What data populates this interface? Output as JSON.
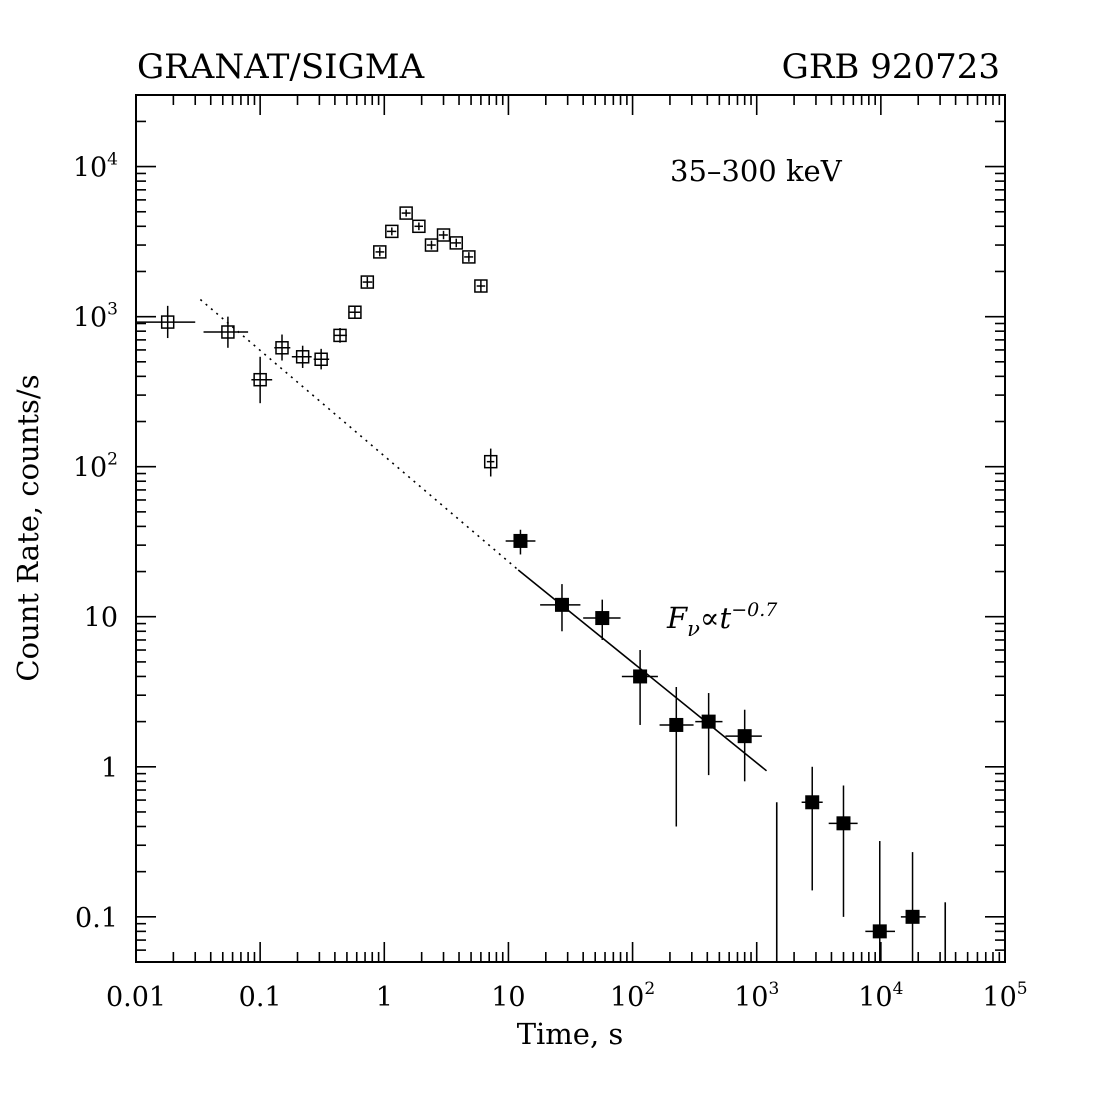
{
  "chart_data": {
    "type": "scatter",
    "title_left": "GRANAT/SIGMA",
    "title_right": "GRB 920723",
    "band_label": "35–300 keV",
    "xlabel": "Time, s",
    "ylabel": "Count Rate, counts/s",
    "xscale": "log",
    "yscale": "log",
    "xlim": [
      0.01,
      100000
    ],
    "ylim": [
      0.05,
      30000
    ],
    "x_tick_labels": [
      {
        "value": 0.01,
        "base": "0.01",
        "exp": ""
      },
      {
        "value": 0.1,
        "base": "0.1",
        "exp": ""
      },
      {
        "value": 1,
        "base": "1",
        "exp": ""
      },
      {
        "value": 10,
        "base": "10",
        "exp": ""
      },
      {
        "value": 100,
        "base": "10",
        "exp": "2"
      },
      {
        "value": 1000,
        "base": "10",
        "exp": "3"
      },
      {
        "value": 10000,
        "base": "10",
        "exp": "4"
      },
      {
        "value": 100000,
        "base": "10",
        "exp": "5"
      }
    ],
    "y_tick_labels": [
      {
        "value": 0.1,
        "base": "0.1",
        "exp": ""
      },
      {
        "value": 1,
        "base": "1",
        "exp": ""
      },
      {
        "value": 10,
        "base": "10",
        "exp": ""
      },
      {
        "value": 100,
        "base": "10",
        "exp": "2"
      },
      {
        "value": 1000,
        "base": "10",
        "exp": "3"
      },
      {
        "value": 10000,
        "base": "10",
        "exp": "4"
      }
    ],
    "series": [
      {
        "marker": "open-square",
        "points": [
          {
            "x": 0.018,
            "y": 920,
            "x_lo": 0.01,
            "x_hi": 0.03,
            "y_lo": 720,
            "y_hi": 1180
          },
          {
            "x": 0.055,
            "y": 790,
            "x_lo": 0.035,
            "x_hi": 0.08,
            "y_lo": 620,
            "y_hi": 1000
          },
          {
            "x": 0.1,
            "y": 380,
            "x_lo": 0.085,
            "x_hi": 0.125,
            "y_lo": 265,
            "y_hi": 540
          },
          {
            "x": 0.15,
            "y": 620,
            "x_lo": 0.13,
            "x_hi": 0.175,
            "y_lo": 510,
            "y_hi": 760
          },
          {
            "x": 0.22,
            "y": 540,
            "x_lo": 0.18,
            "x_hi": 0.26,
            "y_lo": 455,
            "y_hi": 640
          },
          {
            "x": 0.31,
            "y": 520,
            "x_lo": 0.27,
            "x_hi": 0.36,
            "y_lo": 445,
            "y_hi": 610
          },
          {
            "x": 0.44,
            "y": 750,
            "x_lo": 0.39,
            "x_hi": 0.5,
            "y_lo": 670,
            "y_hi": 840
          },
          {
            "x": 0.58,
            "y": 1070,
            "x_lo": 0.52,
            "x_hi": 0.64,
            "y_lo": 970,
            "y_hi": 1180
          },
          {
            "x": 0.73,
            "y": 1700,
            "x_lo": 0.67,
            "x_hi": 0.8,
            "y_lo": 1570,
            "y_hi": 1840
          },
          {
            "x": 0.92,
            "y": 2700,
            "x_lo": 0.85,
            "x_hi": 1.0,
            "y_lo": 2520,
            "y_hi": 2900
          },
          {
            "x": 1.15,
            "y": 3700,
            "x_lo": 1.05,
            "x_hi": 1.25,
            "y_lo": 3480,
            "y_hi": 3930
          },
          {
            "x": 1.5,
            "y": 4900,
            "x_lo": 1.38,
            "x_hi": 1.63,
            "y_lo": 4640,
            "y_hi": 5170
          },
          {
            "x": 1.9,
            "y": 4000,
            "x_lo": 1.75,
            "x_hi": 2.05,
            "y_lo": 3770,
            "y_hi": 4240
          },
          {
            "x": 2.4,
            "y": 3000,
            "x_lo": 2.2,
            "x_hi": 2.6,
            "y_lo": 2800,
            "y_hi": 3210
          },
          {
            "x": 3.0,
            "y": 3500,
            "x_lo": 2.75,
            "x_hi": 3.25,
            "y_lo": 3280,
            "y_hi": 3730
          },
          {
            "x": 3.8,
            "y": 3100,
            "x_lo": 3.45,
            "x_hi": 4.15,
            "y_lo": 2900,
            "y_hi": 3310
          },
          {
            "x": 4.8,
            "y": 2500,
            "x_lo": 4.4,
            "x_hi": 5.2,
            "y_lo": 2320,
            "y_hi": 2690
          },
          {
            "x": 6.0,
            "y": 1600,
            "x_lo": 5.55,
            "x_hi": 6.5,
            "y_lo": 1470,
            "y_hi": 1740
          },
          {
            "x": 7.2,
            "y": 108,
            "x_lo": 6.7,
            "x_hi": 7.7,
            "y_lo": 86,
            "y_hi": 132
          }
        ]
      },
      {
        "marker": "filled-square",
        "points": [
          {
            "x": 12.5,
            "y": 32,
            "x_lo": 9.5,
            "x_hi": 16.5,
            "y_lo": 26,
            "y_hi": 38
          },
          {
            "x": 27,
            "y": 12,
            "x_lo": 18,
            "x_hi": 38,
            "y_lo": 8,
            "y_hi": 16.5
          },
          {
            "x": 57,
            "y": 9.8,
            "x_lo": 40,
            "x_hi": 80,
            "y_lo": 7,
            "y_hi": 13
          },
          {
            "x": 115,
            "y": 4.0,
            "x_lo": 82,
            "x_hi": 160,
            "y_lo": 1.9,
            "y_hi": 6.0
          },
          {
            "x": 225,
            "y": 1.9,
            "x_lo": 165,
            "x_hi": 310,
            "y_lo": 0.4,
            "y_hi": 3.4
          },
          {
            "x": 410,
            "y": 2.0,
            "x_lo": 320,
            "x_hi": 530,
            "y_lo": 0.88,
            "y_hi": 3.1
          },
          {
            "x": 800,
            "y": 1.6,
            "x_lo": 560,
            "x_hi": 1100,
            "y_lo": 0.8,
            "y_hi": 2.4
          },
          {
            "x": 2800,
            "y": 0.58,
            "x_lo": 2300,
            "x_hi": 3400,
            "y_lo": 0.15,
            "y_hi": 1.0
          },
          {
            "x": 5000,
            "y": 0.42,
            "x_lo": 3800,
            "x_hi": 6500,
            "y_lo": 0.1,
            "y_hi": 0.75
          },
          {
            "x": 9800,
            "y": 0.08,
            "x_lo": 7500,
            "x_hi": 13000,
            "y_lo": 0.05,
            "y_hi": 0.32
          },
          {
            "x": 18000,
            "y": 0.1,
            "x_lo": 14500,
            "x_hi": 23000,
            "y_lo": 0.05,
            "y_hi": 0.27
          }
        ]
      },
      {
        "marker": "upper-limit",
        "points": [
          {
            "x": 1450,
            "y_lo": 0.05,
            "y_hi": 0.58
          },
          {
            "x": 33000,
            "y_lo": 0.05,
            "y_hi": 0.125
          }
        ]
      }
    ],
    "fit_line": {
      "label_base": "F",
      "label_sub": "ν",
      "label_mid": "∝t",
      "label_exp": "−0.7",
      "dotted": {
        "x": [
          0.033,
          12
        ],
        "y": [
          1300,
          20.5
        ]
      },
      "solid": {
        "x": [
          12,
          1200
        ],
        "y": [
          20.5,
          0.94
        ]
      }
    }
  }
}
